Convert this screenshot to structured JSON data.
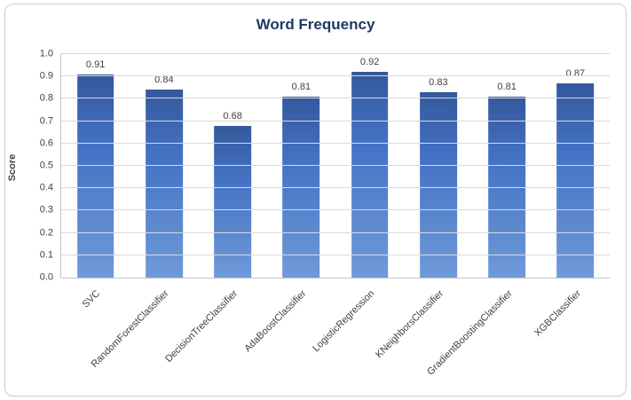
{
  "chart_data": {
    "type": "bar",
    "title": "Word Frequency",
    "xlabel": "",
    "ylabel": "Score",
    "categories": [
      "SVC",
      "RandomForestClassifier",
      "DecisionTreeClassifier",
      "AdaBoostClassifier",
      "LogisticRegression",
      "KNeighborsClassifier",
      "GradientBoostingClassifier",
      "XGBClassifier"
    ],
    "values": [
      0.91,
      0.84,
      0.68,
      0.81,
      0.92,
      0.83,
      0.81,
      0.87
    ],
    "value_labels": [
      "0.91",
      "0.84",
      "0.68",
      "0.81",
      "0.92",
      "0.83",
      "0.81",
      "0.87"
    ],
    "ylim": [
      0.0,
      1.0
    ],
    "ytick_step": 0.1,
    "grid": true,
    "legend": "none",
    "colors": {
      "bar_top": "#34589c",
      "bar_mid": "#4472c4",
      "bar_bottom": "#6f9ad9",
      "gridline": "#d9d9d9",
      "title": "#203864",
      "tick_text": "#404040"
    }
  }
}
